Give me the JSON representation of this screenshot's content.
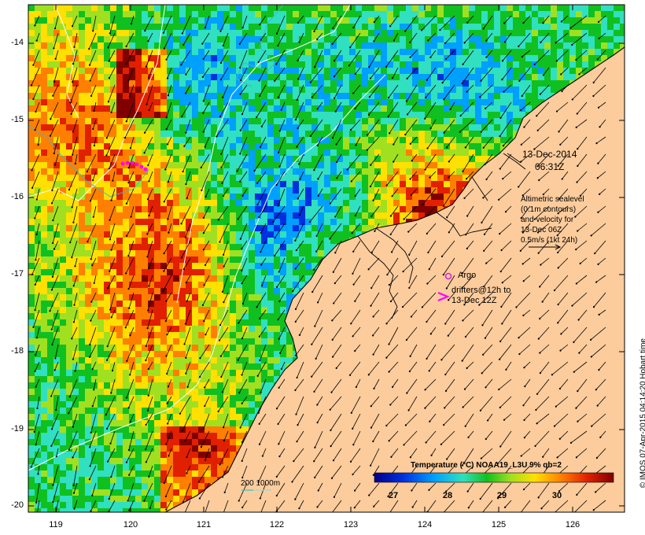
{
  "map": {
    "date": "13-Dec-2014",
    "time": "06:31Z",
    "altimetry_note": [
      "Altimetric sealevel",
      "(0.1m contours)",
      "and velocity for",
      "13-Dec 06Z",
      "0.5m/s (1kt 24h)"
    ],
    "argo_label": "Argo",
    "drifter_note": [
      "drifters@12h to",
      "13-Dec 12Z"
    ],
    "bathy_label": "200  1000m",
    "credit": "© IMOS 07-Apr-2015 04:14:20 Hobart time",
    "colorbar": {
      "title": "Temperature (°C) NOAA19_L3U 9% qb=2",
      "ticks": [
        "27",
        "28",
        "29",
        "30"
      ]
    },
    "x_ticks": [
      "119",
      "120",
      "121",
      "122",
      "123",
      "124",
      "125",
      "126"
    ],
    "y_ticks": [
      "-14",
      "-15",
      "-16",
      "-17",
      "-18",
      "-19",
      "-20"
    ],
    "colors": {
      "land": "#fccc9c",
      "coastline": "#000000",
      "argo_marker": "#e020e0",
      "drifter_marker": "#ff00ff",
      "contour_200": "#40c0c0",
      "contour_sealevel": "#ffffff"
    }
  }
}
